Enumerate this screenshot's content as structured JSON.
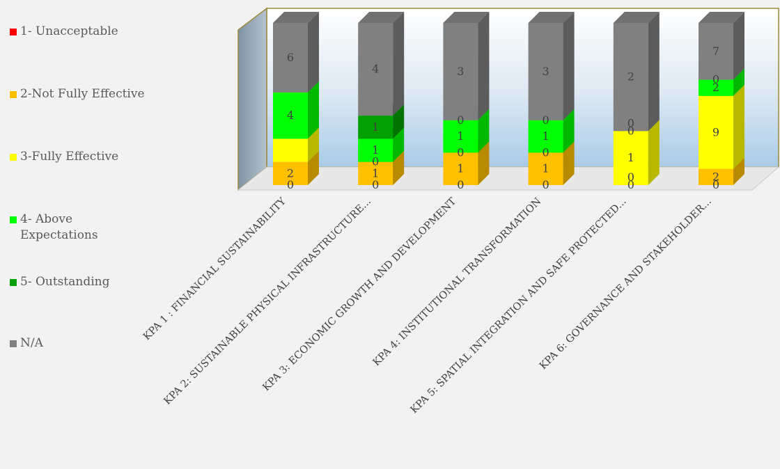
{
  "chart_data": {
    "type": "bar",
    "stacked": true,
    "style": "3d",
    "categories": [
      "KPA 1 : FINANCIAL SUSTAINABILITY",
      "KPA 2: SUSTAINABLE  PHYSICAL INFRASTRUCTURE...",
      "KPA 3: ECONOMIC GROWTH AND DEVELOPMENT",
      "KPA 4: INSTITUTIONAL TRANSFORMATION",
      "KPA 5: SPATIAL INTEGRATION AND SAFE PROTECTED...",
      "KPA 6: GOVERNANCE AND STAKEHOLDER..."
    ],
    "series": [
      {
        "name": "1- Unacceptable",
        "color": "#ff0000",
        "values": [
          0,
          0,
          0,
          0,
          0,
          0
        ]
      },
      {
        "name": "2-Not Fully Effective",
        "color": "#ffc000",
        "values": [
          2,
          1,
          1,
          1,
          0,
          2
        ]
      },
      {
        "name": "3-Fully Effective",
        "color": "#ffff00",
        "values": [
          2,
          0,
          0,
          0,
          1,
          9
        ]
      },
      {
        "name": "4- Above Expectations",
        "color": "#00ff00",
        "values": [
          4,
          1,
          1,
          1,
          0,
          2
        ]
      },
      {
        "name": "5- Outstanding",
        "color": "#00a000",
        "values": [
          0,
          1,
          0,
          0,
          0,
          0
        ]
      },
      {
        "name": "N/A",
        "color": "#808080",
        "values": [
          6,
          4,
          3,
          3,
          2,
          7
        ]
      }
    ],
    "data_labels": [
      [
        "0",
        "0",
        "0",
        "0",
        "0",
        "0"
      ],
      [
        "2",
        "1",
        "1",
        "1",
        "0",
        "2"
      ],
      [
        "",
        "0",
        "0",
        "0",
        "1",
        "9"
      ],
      [
        "4",
        "1",
        "1",
        "1",
        "0",
        "2"
      ],
      [
        "",
        "1",
        "0",
        "0",
        "0",
        "0"
      ],
      [
        "6",
        "4",
        "3",
        "3",
        "2",
        "7"
      ]
    ],
    "legend_position": "left",
    "grid": false
  }
}
